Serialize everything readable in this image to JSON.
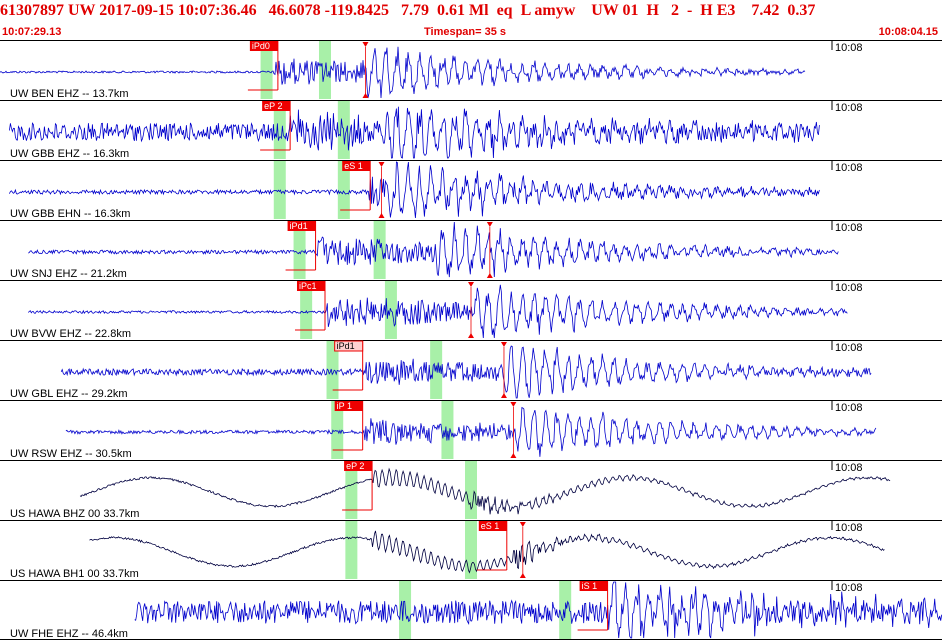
{
  "header": {
    "event_line": "61307897 UW 2017-09-15 10:07:36.46   46.6078 -119.8425   7.79  0.61 Ml  eq  L amyw    UW 01  H   2  -  H E3    7.42  0.37",
    "start_time": "10:07:29.13",
    "timespan": "Timespan=  35 s",
    "end_time": "10:08:04.15"
  },
  "minute_label": "10:08",
  "colors": {
    "text_red": "#e00000",
    "trace_blue": "#0000cc",
    "trace_navy": "#000040",
    "pick_red": "#ee0000",
    "pick_pink": "#ffd0d0",
    "window_green": "#a8f0a8",
    "separator": "#000000"
  },
  "traces": [
    {
      "label": "UW BEN EHZ -- 13.7km",
      "color": "#0000cc",
      "start": 0.0,
      "end": 0.855,
      "pre_noise": 0.04,
      "amp": 0.55,
      "onset": 0.29,
      "s_onset": 0.385,
      "mode": "burst",
      "windows": [
        0.283,
        0.345
      ],
      "picks": [
        {
          "label": "iPd0",
          "pos": 0.295,
          "style": "red"
        }
      ],
      "markers": [
        0.388
      ]
    },
    {
      "label": "UW GBB EHZ -- 16.3km",
      "color": "#0000cc",
      "start": 0.01,
      "end": 0.87,
      "pre_noise": 0.35,
      "amp": 0.6,
      "onset": 0.305,
      "s_onset": 0.41,
      "mode": "burst",
      "windows": [
        0.297,
        0.365
      ],
      "picks": [
        {
          "label": "eP 2",
          "pos": 0.308,
          "style": "red"
        }
      ],
      "markers": []
    },
    {
      "label": "UW GBB EHN -- 16.3km",
      "color": "#0000cc",
      "start": 0.01,
      "end": 0.87,
      "pre_noise": 0.08,
      "amp": 0.55,
      "onset": 0.39,
      "s_onset": 0.405,
      "mode": "burst",
      "windows": [
        0.297,
        0.365
      ],
      "picks": [
        {
          "label": "eS 1",
          "pos": 0.393,
          "style": "red"
        }
      ],
      "markers": [
        0.405
      ]
    },
    {
      "label": "UW SNJ EHZ -- 21.2km",
      "color": "#0000cc",
      "start": 0.03,
      "end": 0.89,
      "pre_noise": 0.07,
      "amp": 0.6,
      "onset": 0.335,
      "s_onset": 0.46,
      "mode": "burst",
      "windows": [
        0.318,
        0.403
      ],
      "picks": [
        {
          "label": "iPd1",
          "pos": 0.335,
          "style": "red"
        }
      ],
      "markers": [
        0.52
      ]
    },
    {
      "label": "UW BVW EHZ -- 22.8km",
      "color": "#0000cc",
      "start": 0.03,
      "end": 0.9,
      "pre_noise": 0.05,
      "amp": 0.65,
      "onset": 0.345,
      "s_onset": 0.5,
      "mode": "burst",
      "windows": [
        0.325,
        0.415
      ],
      "picks": [
        {
          "label": "iPc1",
          "pos": 0.345,
          "style": "red"
        }
      ],
      "markers": [
        0.5
      ]
    },
    {
      "label": "UW GBL EHZ -- 29.2km",
      "color": "#0000cc",
      "start": 0.065,
      "end": 0.925,
      "pre_noise": 0.12,
      "amp": 0.5,
      "onset": 0.385,
      "s_onset": 0.53,
      "mode": "burst",
      "windows": [
        0.353,
        0.463
      ],
      "picks": [
        {
          "label": "iPd1",
          "pos": 0.385,
          "style": "pink"
        }
      ],
      "markers": [
        0.535
      ]
    },
    {
      "label": "UW RSW EHZ -- 30.5km",
      "color": "#0000cc",
      "start": 0.07,
      "end": 0.93,
      "pre_noise": 0.07,
      "amp": 0.5,
      "onset": 0.385,
      "s_onset": 0.545,
      "mode": "burst",
      "windows": [
        0.358,
        0.475
      ],
      "picks": [
        {
          "label": "iP 1",
          "pos": 0.385,
          "style": "red"
        }
      ],
      "markers": [
        0.545
      ]
    },
    {
      "label": "US HAWA BHZ 00 33.7km",
      "color": "#000040",
      "start": 0.085,
      "end": 0.945,
      "pre_noise": 0.03,
      "amp": 0.35,
      "onset": 0.395,
      "s_onset": 0.5,
      "mode": "wave",
      "windows": [
        0.373,
        0.5
      ],
      "picks": [
        {
          "label": "eP 2",
          "pos": 0.395,
          "style": "red"
        }
      ],
      "markers": []
    },
    {
      "label": "US HAWA BH1 00 33.7km",
      "color": "#000040",
      "start": 0.095,
      "end": 0.94,
      "pre_noise": 0.03,
      "amp": 0.3,
      "onset": 0.395,
      "s_onset": 0.545,
      "mode": "wave",
      "windows": [
        0.373,
        0.5
      ],
      "picks": [
        {
          "label": "eS 1",
          "pos": 0.538,
          "style": "red"
        }
      ],
      "markers": [
        0.555
      ]
    },
    {
      "label": "UW FHE EHZ -- 46.4km",
      "color": "#0000cc",
      "start": 0.143,
      "end": 1.0,
      "pre_noise": 0.45,
      "amp": 0.55,
      "onset": 0.64,
      "s_onset": 0.645,
      "mode": "burst",
      "windows": [
        0.43,
        0.6
      ],
      "picks": [
        {
          "label": "iS 1",
          "pos": 0.645,
          "style": "red"
        }
      ],
      "markers": []
    }
  ]
}
